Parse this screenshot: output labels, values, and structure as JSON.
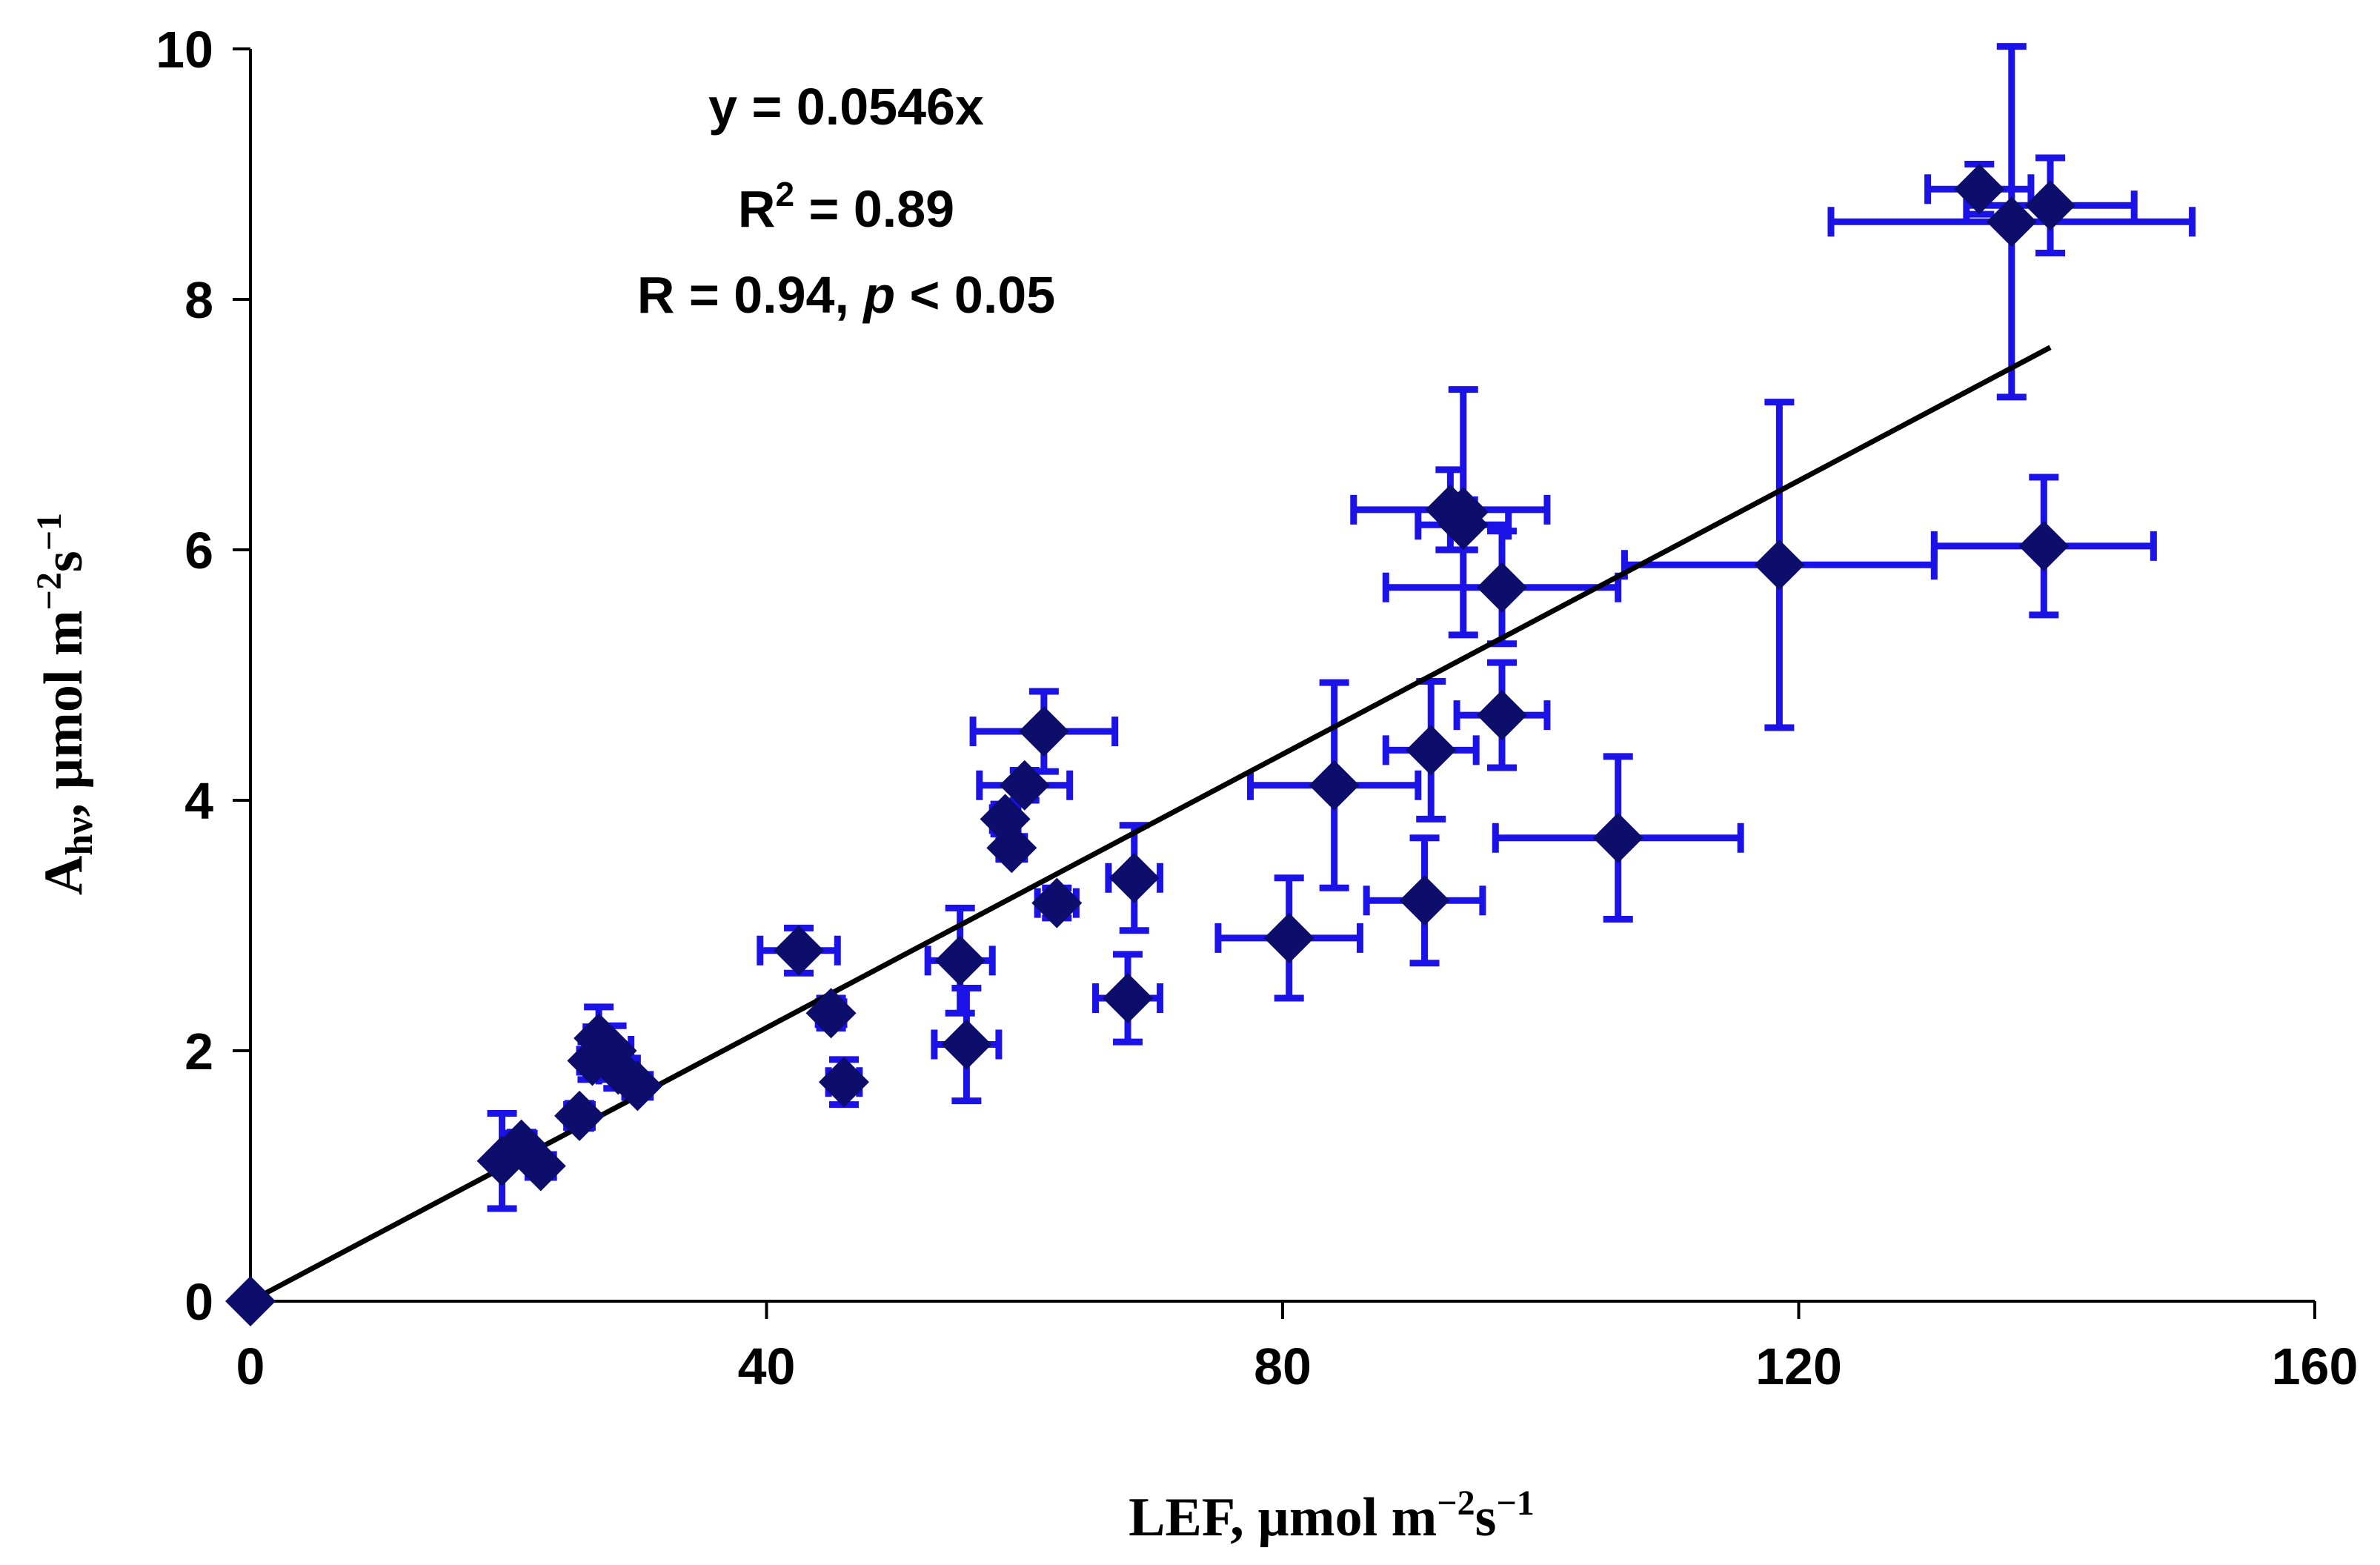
{
  "colors": {
    "errorbar": "#1a12e6",
    "marker": "#0d0d6b",
    "trendline": "#000000",
    "axis": "#000000"
  },
  "chart_data": {
    "type": "scatter",
    "title": "",
    "xlabel": {
      "prefix": "LEF, µmol m",
      "sup1": "−2",
      "mid": "s",
      "sup2": "−1"
    },
    "ylabel": {
      "prefix": "A",
      "sub": "hν",
      "mid": ", µmol m",
      "sup1": "−2",
      "mid2": "s",
      "sup2": "−1"
    },
    "xlim": [
      0,
      160
    ],
    "ylim": [
      0,
      10
    ],
    "xticks": [
      0,
      40,
      80,
      120,
      160
    ],
    "yticks": [
      0,
      2,
      4,
      6,
      8,
      10
    ],
    "xtick_labels": [
      "0",
      "40",
      "80",
      "120",
      "160"
    ],
    "ytick_labels": [
      "0",
      "2",
      "4",
      "6",
      "8",
      "10"
    ],
    "annotation": {
      "equation": "y = 0.0546x",
      "r2_prefix": "R",
      "r2_sup": "2",
      "r2_value": " = 0.89",
      "r_prefix": "R = 0.94, ",
      "r_p": "p",
      "r_suffix": " < 0.05"
    },
    "trendline": {
      "slope": 0.0546,
      "intercept": 0,
      "x_range": [
        0,
        139.5
      ]
    },
    "points": [
      {
        "x": 0,
        "y": 0,
        "xerr": 0,
        "yerr": 0
      },
      {
        "x": 19.5,
        "y": 1.12,
        "xerr": 0,
        "yerr": 0.38
      },
      {
        "x": 21,
        "y": 1.25,
        "xerr": 1,
        "yerr": 0.1
      },
      {
        "x": 22.5,
        "y": 1.08,
        "xerr": 1,
        "yerr": 0.08
      },
      {
        "x": 25.5,
        "y": 1.48,
        "xerr": 1,
        "yerr": 0.1
      },
      {
        "x": 26.5,
        "y": 1.92,
        "xerr": 1,
        "yerr": 0.15
      },
      {
        "x": 27,
        "y": 2.1,
        "xerr": 1,
        "yerr": 0.25
      },
      {
        "x": 28,
        "y": 2.0,
        "xerr": 1.5,
        "yerr": 0.2
      },
      {
        "x": 28.5,
        "y": 1.85,
        "xerr": 1.5,
        "yerr": 0.15
      },
      {
        "x": 30,
        "y": 1.72,
        "xerr": 1,
        "yerr": 0.08
      },
      {
        "x": 42.5,
        "y": 2.8,
        "xerr": 3,
        "yerr": 0.18
      },
      {
        "x": 45,
        "y": 2.3,
        "xerr": 1,
        "yerr": 0.12
      },
      {
        "x": 46,
        "y": 1.75,
        "xerr": 1.2,
        "yerr": 0.18
      },
      {
        "x": 55,
        "y": 2.72,
        "xerr": 2.5,
        "yerr": 0.42
      },
      {
        "x": 55.5,
        "y": 2.05,
        "xerr": 2.5,
        "yerr": 0.45
      },
      {
        "x": 58.5,
        "y": 3.85,
        "xerr": 1,
        "yerr": 0.12
      },
      {
        "x": 59,
        "y": 3.62,
        "xerr": 1,
        "yerr": 0.08
      },
      {
        "x": 60,
        "y": 4.12,
        "xerr": 3.5,
        "yerr": 0.12
      },
      {
        "x": 61.5,
        "y": 4.55,
        "xerr": 5.5,
        "yerr": 0.32
      },
      {
        "x": 62.5,
        "y": 3.18,
        "xerr": 1.5,
        "yerr": 0.12
      },
      {
        "x": 68,
        "y": 2.42,
        "xerr": 2.5,
        "yerr": 0.35
      },
      {
        "x": 68.5,
        "y": 3.38,
        "xerr": 2,
        "yerr": 0.42
      },
      {
        "x": 80.5,
        "y": 2.9,
        "xerr": 5.5,
        "yerr": 0.48
      },
      {
        "x": 84,
        "y": 4.12,
        "xerr": 6.5,
        "yerr": 0.82
      },
      {
        "x": 91,
        "y": 3.2,
        "xerr": 4.5,
        "yerr": 0.5
      },
      {
        "x": 91.5,
        "y": 4.4,
        "xerr": 3.5,
        "yerr": 0.55
      },
      {
        "x": 93,
        "y": 6.32,
        "xerr": 7.5,
        "yerr": 0.32
      },
      {
        "x": 94,
        "y": 6.2,
        "xerr": 3.5,
        "yerr": 0.2
      },
      {
        "x": 97,
        "y": 5.7,
        "xerr": 9,
        "yerr": 0.45
      },
      {
        "x": 97,
        "y": 4.68,
        "xerr": 3.5,
        "yerr": 0.42
      },
      {
        "x": 94,
        "y": 6.3,
        "xerr": 0,
        "yerr": 0.98
      },
      {
        "x": 106,
        "y": 3.7,
        "xerr": 9.5,
        "yerr": 0.65
      },
      {
        "x": 118.5,
        "y": 5.88,
        "xerr": 12,
        "yerr": 1.3
      },
      {
        "x": 134,
        "y": 8.88,
        "xerr": 4,
        "yerr": 0.2
      },
      {
        "x": 136.5,
        "y": 8.62,
        "xerr": 14,
        "yerr": 1.4
      },
      {
        "x": 139.5,
        "y": 8.75,
        "xerr": 6.5,
        "yerr": 0.38
      },
      {
        "x": 139,
        "y": 6.03,
        "xerr": 8.5,
        "yerr": 0.55
      }
    ]
  }
}
